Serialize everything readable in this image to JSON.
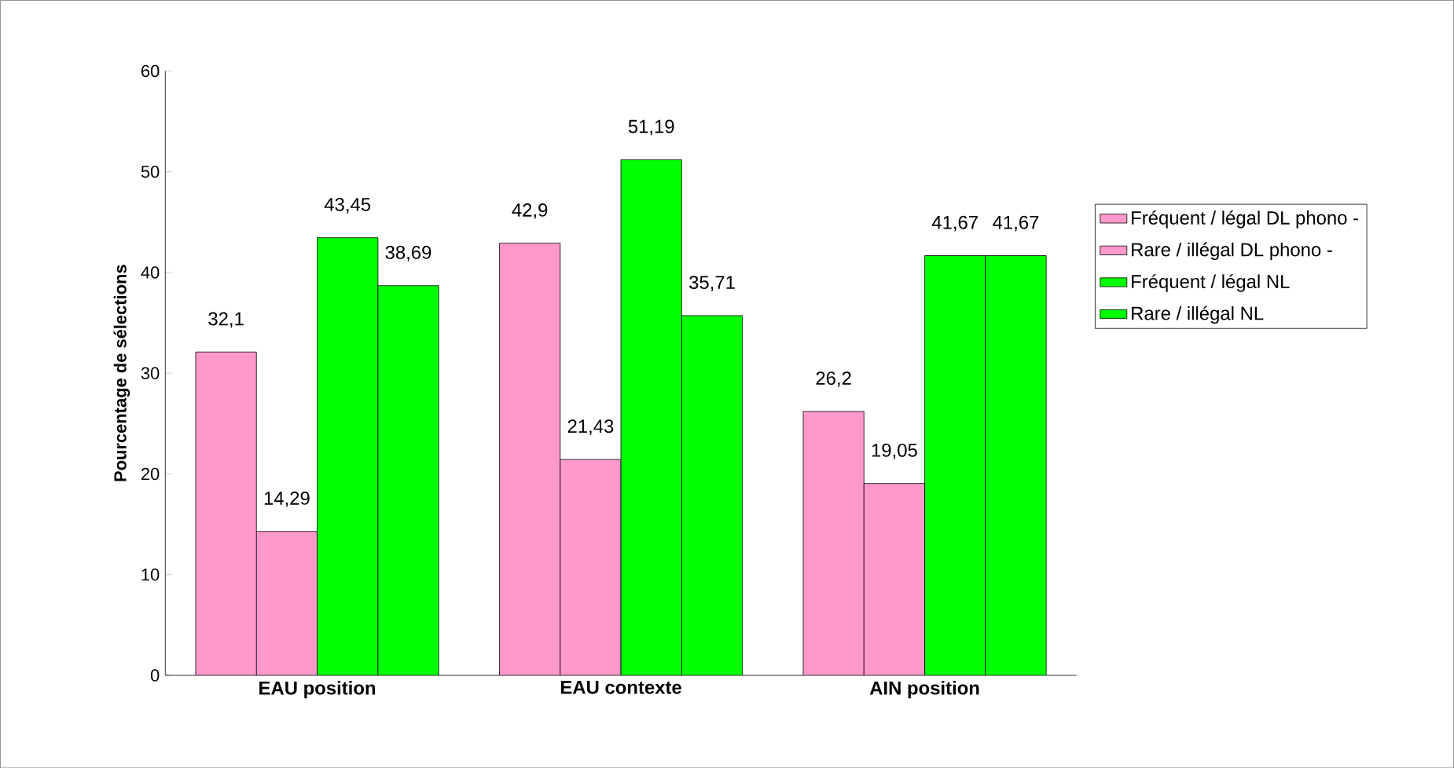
{
  "chart_data": {
    "type": "bar",
    "ylabel": "Pourcentage de sélections",
    "categories": [
      "EAU position",
      "EAU contexte",
      "AIN position"
    ],
    "series": [
      {
        "name": "Fréquent / légal DL phono -",
        "color": "#ff99cc",
        "values": [
          32.1,
          42.9,
          26.2
        ],
        "value_labels": [
          "32,1",
          "42,9",
          "26,2"
        ]
      },
      {
        "name": "Rare / illégal DL phono -",
        "color": "#ff99cc",
        "values": [
          14.29,
          21.43,
          19.05
        ],
        "value_labels": [
          "14,29",
          "21,43",
          "19,05"
        ]
      },
      {
        "name": "Fréquent / légal NL",
        "color": "#00ff00",
        "values": [
          43.45,
          51.19,
          41.67
        ],
        "value_labels": [
          "43,45",
          "51,19",
          "41,67"
        ]
      },
      {
        "name": "Rare / illégal NL",
        "color": "#00ff00",
        "values": [
          38.69,
          35.71,
          41.67
        ],
        "value_labels": [
          "38,69",
          "35,71",
          "41,67"
        ]
      }
    ],
    "ylim": [
      0,
      60
    ],
    "yticks": [
      0,
      10,
      20,
      30,
      40,
      50,
      60
    ],
    "grid": false,
    "legend": "right"
  }
}
